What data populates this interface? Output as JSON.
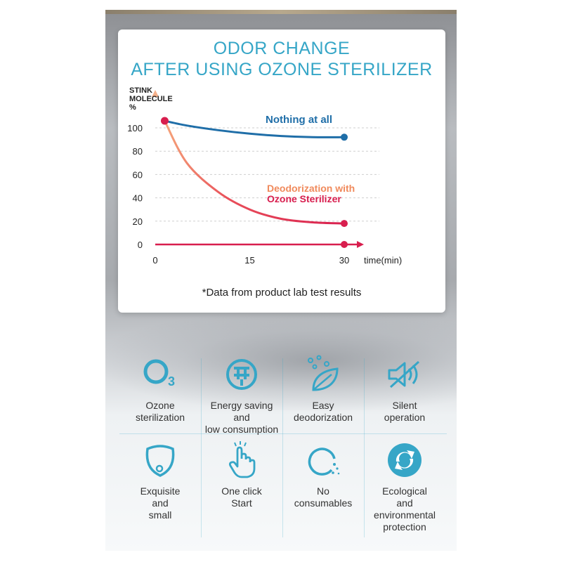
{
  "chart_data": {
    "type": "line",
    "title": [
      "ODOR CHANGE",
      "AFTER USING OZONE STERILIZER"
    ],
    "ylabel": [
      "STINK",
      "MOLECULE",
      "%"
    ],
    "xlabel": "time(min)",
    "xticks": [
      0,
      15,
      30
    ],
    "yticks": [
      0,
      20,
      40,
      60,
      80,
      100
    ],
    "xlim": [
      0,
      30
    ],
    "ylim": [
      0,
      100
    ],
    "series": [
      {
        "name": "Nothing at all",
        "color": "#1f6ea8",
        "x": [
          1.5,
          5,
          10,
          15,
          20,
          25,
          30
        ],
        "y": [
          106,
          102,
          98,
          95,
          93,
          92,
          92
        ]
      },
      {
        "name": "Deodorization with Ozone Sterilizer",
        "color": "#d81e4e",
        "x": [
          1.5,
          5,
          10,
          15,
          20,
          25,
          30
        ],
        "y": [
          106,
          70,
          45,
          30,
          22,
          19,
          18
        ]
      },
      {
        "name": "",
        "color": "#d81e4e",
        "x": [
          1.5,
          30
        ],
        "y": [
          0,
          0
        ]
      }
    ],
    "series_labels": {
      "nothing": "Nothing at all",
      "ozone_line1": "Deodorization with",
      "ozone_line2": "Ozone Sterilizer"
    },
    "footnote": "*Data from product lab test results"
  },
  "features": [
    {
      "icon": "o3-icon",
      "label": "Ozone sterilization",
      "lines": [
        "Ozone",
        "sterilization"
      ]
    },
    {
      "icon": "energy-plug-icon",
      "label": "Energy saving and low consumption",
      "lines": [
        "Energy saving",
        "and",
        "low consumption"
      ]
    },
    {
      "icon": "leaf-bubbles-icon",
      "label": "Easy deodorization",
      "lines": [
        "Easy",
        "deodorization"
      ]
    },
    {
      "icon": "mute-speaker-icon",
      "label": "Silent operation",
      "lines": [
        "Silent",
        "operation"
      ]
    },
    {
      "icon": "device-shape-icon",
      "label": "Exquisite and small",
      "lines": [
        "Exquisite",
        "and",
        "small"
      ]
    },
    {
      "icon": "tap-hand-icon",
      "label": "One click Start",
      "lines": [
        "One click",
        "Start"
      ]
    },
    {
      "icon": "no-consumables-icon",
      "label": "No consumables",
      "lines": [
        "No",
        "consumables"
      ]
    },
    {
      "icon": "recycle-icon",
      "label": "Ecological and environmental protection",
      "lines": [
        "Ecological",
        "and",
        "environmental",
        "protection"
      ]
    }
  ],
  "colors": {
    "accent": "#36a6c7",
    "red": "#d81e4e",
    "orange": "#f0a070",
    "blue": "#1f6ea8"
  }
}
